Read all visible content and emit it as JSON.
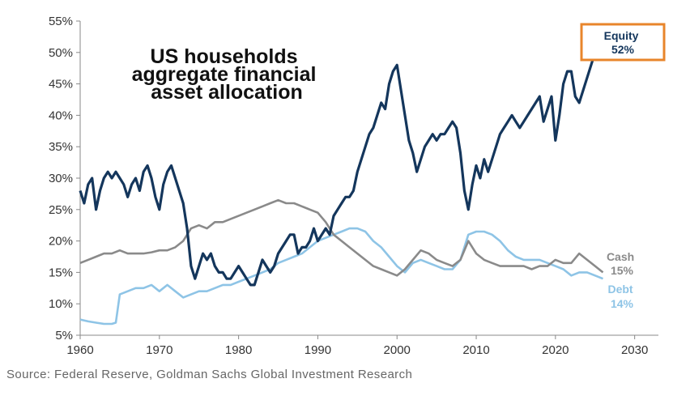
{
  "chart_data": {
    "type": "line",
    "title_lines": [
      "US households",
      "aggregate financial",
      "asset allocation"
    ],
    "xlabel": "",
    "ylabel": "",
    "xlim": [
      1960,
      2033
    ],
    "ylim": [
      5,
      55
    ],
    "xticks": [
      1960,
      1970,
      1980,
      1990,
      2000,
      2010,
      2020,
      2030
    ],
    "yticks": [
      5,
      10,
      15,
      20,
      25,
      30,
      35,
      40,
      45,
      50,
      55
    ],
    "ytick_labels": [
      "5%",
      "10%",
      "15%",
      "20%",
      "25%",
      "30%",
      "35%",
      "40%",
      "45%",
      "50%",
      "55%"
    ],
    "grid": false,
    "series": [
      {
        "name": "Equity",
        "end_label": "Equity",
        "end_value_label": "52%",
        "color": "#14365c",
        "highlight_color": "#e8852b",
        "points": [
          [
            1960,
            28
          ],
          [
            1960.5,
            26
          ],
          [
            1961,
            29
          ],
          [
            1961.5,
            30
          ],
          [
            1962,
            25
          ],
          [
            1962.5,
            28
          ],
          [
            1963,
            30
          ],
          [
            1963.5,
            31
          ],
          [
            1964,
            30
          ],
          [
            1964.5,
            31
          ],
          [
            1965,
            30
          ],
          [
            1965.5,
            29
          ],
          [
            1966,
            27
          ],
          [
            1966.5,
            29
          ],
          [
            1967,
            30
          ],
          [
            1967.5,
            28
          ],
          [
            1968,
            31
          ],
          [
            1968.5,
            32
          ],
          [
            1969,
            30
          ],
          [
            1969.5,
            27
          ],
          [
            1970,
            25
          ],
          [
            1970.5,
            29
          ],
          [
            1971,
            31
          ],
          [
            1971.5,
            32
          ],
          [
            1972,
            30
          ],
          [
            1972.5,
            28
          ],
          [
            1973,
            26
          ],
          [
            1973.5,
            22
          ],
          [
            1974,
            16
          ],
          [
            1974.5,
            14
          ],
          [
            1975,
            16
          ],
          [
            1975.5,
            18
          ],
          [
            1976,
            17
          ],
          [
            1976.5,
            18
          ],
          [
            1977,
            16
          ],
          [
            1977.5,
            15
          ],
          [
            1978,
            15
          ],
          [
            1978.5,
            14
          ],
          [
            1979,
            14
          ],
          [
            1979.5,
            15
          ],
          [
            1980,
            16
          ],
          [
            1980.5,
            15
          ],
          [
            1981,
            14
          ],
          [
            1981.5,
            13
          ],
          [
            1982,
            13
          ],
          [
            1982.5,
            15
          ],
          [
            1983,
            17
          ],
          [
            1983.5,
            16
          ],
          [
            1984,
            15
          ],
          [
            1984.5,
            16
          ],
          [
            1985,
            18
          ],
          [
            1985.5,
            19
          ],
          [
            1986,
            20
          ],
          [
            1986.5,
            21
          ],
          [
            1987,
            21
          ],
          [
            1987.5,
            18
          ],
          [
            1988,
            19
          ],
          [
            1988.5,
            19
          ],
          [
            1989,
            20
          ],
          [
            1989.5,
            22
          ],
          [
            1990,
            20
          ],
          [
            1990.5,
            21
          ],
          [
            1991,
            22
          ],
          [
            1991.5,
            21
          ],
          [
            1992,
            24
          ],
          [
            1992.5,
            25
          ],
          [
            1993,
            26
          ],
          [
            1993.5,
            27
          ],
          [
            1994,
            27
          ],
          [
            1994.5,
            28
          ],
          [
            1995,
            31
          ],
          [
            1995.5,
            33
          ],
          [
            1996,
            35
          ],
          [
            1996.5,
            37
          ],
          [
            1997,
            38
          ],
          [
            1997.5,
            40
          ],
          [
            1998,
            42
          ],
          [
            1998.5,
            41
          ],
          [
            1999,
            45
          ],
          [
            1999.5,
            47
          ],
          [
            2000,
            48
          ],
          [
            2000.5,
            44
          ],
          [
            2001,
            40
          ],
          [
            2001.5,
            36
          ],
          [
            2002,
            34
          ],
          [
            2002.5,
            31
          ],
          [
            2003,
            33
          ],
          [
            2003.5,
            35
          ],
          [
            2004,
            36
          ],
          [
            2004.5,
            37
          ],
          [
            2005,
            36
          ],
          [
            2005.5,
            37
          ],
          [
            2006,
            37
          ],
          [
            2006.5,
            38
          ],
          [
            2007,
            39
          ],
          [
            2007.5,
            38
          ],
          [
            2008,
            34
          ],
          [
            2008.5,
            28
          ],
          [
            2009,
            25
          ],
          [
            2009.5,
            29
          ],
          [
            2010,
            32
          ],
          [
            2010.5,
            30
          ],
          [
            2011,
            33
          ],
          [
            2011.5,
            31
          ],
          [
            2012,
            33
          ],
          [
            2012.5,
            35
          ],
          [
            2013,
            37
          ],
          [
            2013.5,
            38
          ],
          [
            2014,
            39
          ],
          [
            2014.5,
            40
          ],
          [
            2015,
            39
          ],
          [
            2015.5,
            38
          ],
          [
            2016,
            39
          ],
          [
            2016.5,
            40
          ],
          [
            2017,
            41
          ],
          [
            2017.5,
            42
          ],
          [
            2018,
            43
          ],
          [
            2018.5,
            39
          ],
          [
            2019,
            41
          ],
          [
            2019.5,
            43
          ],
          [
            2020,
            36
          ],
          [
            2020.5,
            40
          ],
          [
            2021,
            45
          ],
          [
            2021.5,
            47
          ],
          [
            2022,
            47
          ],
          [
            2022.5,
            43
          ],
          [
            2023,
            42
          ],
          [
            2023.5,
            44
          ],
          [
            2024,
            46
          ],
          [
            2024.5,
            48
          ],
          [
            2025,
            50
          ],
          [
            2025.5,
            51
          ],
          [
            2026,
            52
          ]
        ]
      },
      {
        "name": "Cash",
        "end_label": "Cash",
        "end_value_label": "15%",
        "color": "#8a8a8a",
        "points": [
          [
            1960,
            16.5
          ],
          [
            1961,
            17
          ],
          [
            1962,
            17.5
          ],
          [
            1963,
            18
          ],
          [
            1964,
            18
          ],
          [
            1965,
            18.5
          ],
          [
            1966,
            18
          ],
          [
            1967,
            18
          ],
          [
            1968,
            18
          ],
          [
            1969,
            18.2
          ],
          [
            1970,
            18.5
          ],
          [
            1971,
            18.5
          ],
          [
            1972,
            19
          ],
          [
            1973,
            20
          ],
          [
            1974,
            22
          ],
          [
            1975,
            22.5
          ],
          [
            1976,
            22
          ],
          [
            1977,
            23
          ],
          [
            1978,
            23
          ],
          [
            1979,
            23.5
          ],
          [
            1980,
            24
          ],
          [
            1981,
            24.5
          ],
          [
            1982,
            25
          ],
          [
            1983,
            25.5
          ],
          [
            1984,
            26
          ],
          [
            1985,
            26.5
          ],
          [
            1986,
            26
          ],
          [
            1987,
            26
          ],
          [
            1988,
            25.5
          ],
          [
            1989,
            25
          ],
          [
            1990,
            24.5
          ],
          [
            1991,
            23
          ],
          [
            1992,
            21
          ],
          [
            1993,
            20
          ],
          [
            1994,
            19
          ],
          [
            1995,
            18
          ],
          [
            1996,
            17
          ],
          [
            1997,
            16
          ],
          [
            1998,
            15.5
          ],
          [
            1999,
            15
          ],
          [
            2000,
            14.5
          ],
          [
            2001,
            15.5
          ],
          [
            2002,
            17
          ],
          [
            2003,
            18.5
          ],
          [
            2004,
            18
          ],
          [
            2005,
            17
          ],
          [
            2006,
            16.5
          ],
          [
            2007,
            16
          ],
          [
            2008,
            17
          ],
          [
            2009,
            20
          ],
          [
            2010,
            18
          ],
          [
            2011,
            17
          ],
          [
            2012,
            16.5
          ],
          [
            2013,
            16
          ],
          [
            2014,
            16
          ],
          [
            2015,
            16
          ],
          [
            2016,
            16
          ],
          [
            2017,
            15.5
          ],
          [
            2018,
            16
          ],
          [
            2019,
            16
          ],
          [
            2020,
            17
          ],
          [
            2021,
            16.5
          ],
          [
            2022,
            16.5
          ],
          [
            2023,
            18
          ],
          [
            2024,
            17
          ],
          [
            2025,
            16
          ],
          [
            2026,
            15
          ]
        ]
      },
      {
        "name": "Debt",
        "end_label": "Debt",
        "end_value_label": "14%",
        "color": "#8ec4e6",
        "points": [
          [
            1960,
            7.5
          ],
          [
            1961,
            7.2
          ],
          [
            1962,
            7
          ],
          [
            1963,
            6.8
          ],
          [
            1964,
            6.8
          ],
          [
            1964.5,
            7
          ],
          [
            1965,
            11.5
          ],
          [
            1966,
            12
          ],
          [
            1967,
            12.5
          ],
          [
            1968,
            12.5
          ],
          [
            1969,
            13
          ],
          [
            1970,
            12
          ],
          [
            1971,
            13
          ],
          [
            1972,
            12
          ],
          [
            1973,
            11
          ],
          [
            1974,
            11.5
          ],
          [
            1975,
            12
          ],
          [
            1976,
            12
          ],
          [
            1977,
            12.5
          ],
          [
            1978,
            13
          ],
          [
            1979,
            13
          ],
          [
            1980,
            13.5
          ],
          [
            1981,
            14
          ],
          [
            1982,
            14.5
          ],
          [
            1983,
            15
          ],
          [
            1984,
            15.5
          ],
          [
            1985,
            16.5
          ],
          [
            1986,
            17
          ],
          [
            1987,
            17.5
          ],
          [
            1988,
            18
          ],
          [
            1989,
            19
          ],
          [
            1990,
            20
          ],
          [
            1991,
            20.5
          ],
          [
            1992,
            21
          ],
          [
            1993,
            21.5
          ],
          [
            1994,
            22
          ],
          [
            1995,
            22
          ],
          [
            1996,
            21.5
          ],
          [
            1997,
            20
          ],
          [
            1998,
            19
          ],
          [
            1999,
            17.5
          ],
          [
            2000,
            16
          ],
          [
            2001,
            15
          ],
          [
            2002,
            16.5
          ],
          [
            2003,
            17
          ],
          [
            2004,
            16.5
          ],
          [
            2005,
            16
          ],
          [
            2006,
            15.5
          ],
          [
            2007,
            15.5
          ],
          [
            2008,
            17
          ],
          [
            2009,
            21
          ],
          [
            2010,
            21.5
          ],
          [
            2011,
            21.5
          ],
          [
            2012,
            21
          ],
          [
            2013,
            20
          ],
          [
            2014,
            18.5
          ],
          [
            2015,
            17.5
          ],
          [
            2016,
            17
          ],
          [
            2017,
            17
          ],
          [
            2018,
            17
          ],
          [
            2019,
            16.5
          ],
          [
            2020,
            16
          ],
          [
            2021,
            15.5
          ],
          [
            2022,
            14.5
          ],
          [
            2023,
            15
          ],
          [
            2024,
            15
          ],
          [
            2025,
            14.5
          ],
          [
            2026,
            14
          ]
        ]
      }
    ],
    "source": "Source: Federal Reserve, Goldman Sachs Global Investment Research"
  }
}
